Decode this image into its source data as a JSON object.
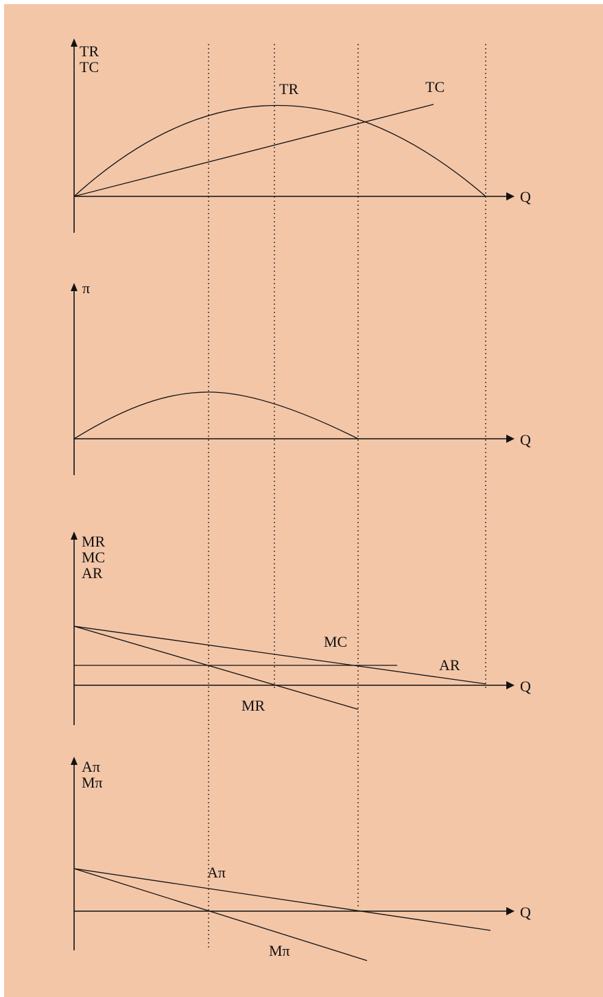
{
  "panel1": {
    "y_label_top": "TR",
    "y_label_bottom": "TC",
    "x_label": "Q",
    "tr_label": "TR",
    "tc_label": "TC"
  },
  "panel2": {
    "y_label": "π",
    "x_label": "Q"
  },
  "panel3": {
    "y_label_1": "MR",
    "y_label_2": "MC",
    "y_label_3": "AR",
    "x_label": "Q",
    "mc_label": "MC",
    "ar_label": "AR",
    "mr_label": "MR"
  },
  "panel4": {
    "y_label_1": "Aπ",
    "y_label_2": "Mπ",
    "x_label": "Q",
    "api_label": "Aπ",
    "mpi_label": "Mπ"
  },
  "colors": {
    "background": "#f3c6a8",
    "ink": "#111111"
  }
}
